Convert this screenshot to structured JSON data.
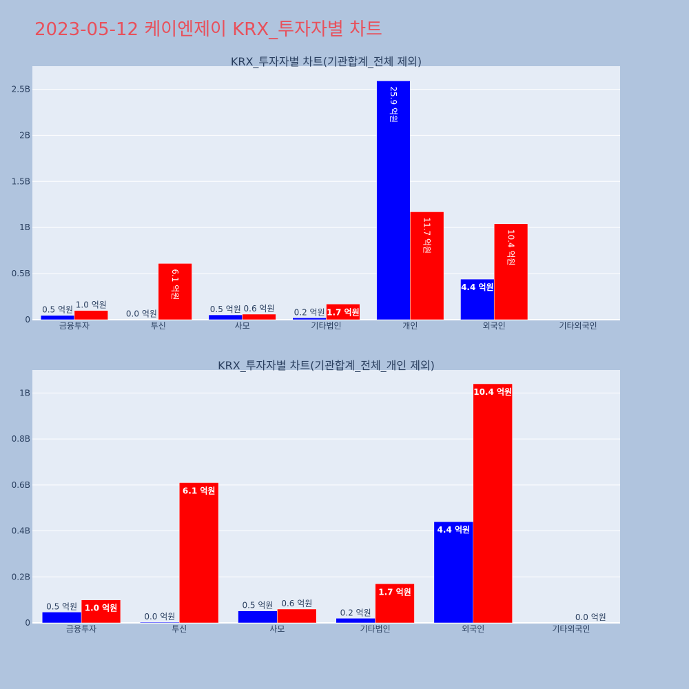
{
  "page": {
    "title": "2023-05-12 케이엔제이 KRX_투자자별 차트"
  },
  "colors": {
    "buy": "#0000ff",
    "sell": "#ff0000",
    "plot_bg": "#e5ecf6",
    "paper_bg": "#b0c4de",
    "title": "#e8505b"
  },
  "chart_data": [
    {
      "type": "bar",
      "title": "KRX_투자자별 차트(기관합계_전체 제외)",
      "categories": [
        "금융투자",
        "투신",
        "사모",
        "기타법인",
        "개인",
        "외국인",
        "기타외국인"
      ],
      "series": [
        {
          "values": [
            47000000,
            3000000,
            52000000,
            20000000,
            2590000000,
            440000000,
            0
          ],
          "labels": [
            "0.5 억원",
            "0.0 억원",
            "0.5 억원",
            "0.2 억원",
            "25.9 억원",
            "4.4 억원",
            ""
          ]
        },
        {
          "values": [
            100000000,
            610000000,
            60000000,
            170000000,
            1170000000,
            1040000000,
            0
          ],
          "labels": [
            "1.0 억원",
            "6.1 억원",
            "0.6 억원",
            "1.7 억원",
            "11.7 억원",
            "10.4 억원",
            ""
          ]
        }
      ],
      "ylim": [
        0,
        2750000000
      ],
      "yticks": [
        0,
        500000000,
        1000000000,
        1500000000,
        2000000000,
        2500000000
      ],
      "ytick_labels": [
        "0",
        "0.5B",
        "1B",
        "1.5B",
        "2B",
        "2.5B"
      ],
      "grid": true
    },
    {
      "type": "bar",
      "title": "KRX_투자자별 차트(기관합계_전체_개인 제외)",
      "categories": [
        "금융투자",
        "투신",
        "사모",
        "기타법인",
        "외국인",
        "기타외국인"
      ],
      "series": [
        {
          "values": [
            47000000,
            3000000,
            52000000,
            20000000,
            440000000,
            0
          ],
          "labels": [
            "0.5 억원",
            "0.0 억원",
            "0.5 억원",
            "0.2 억원",
            "4.4 억원",
            ""
          ]
        },
        {
          "values": [
            100000000,
            610000000,
            60000000,
            170000000,
            1040000000,
            0
          ],
          "labels": [
            "1.0 억원",
            "6.1 억원",
            "0.6 억원",
            "1.7 억원",
            "10.4 억원",
            "0.0 억원"
          ]
        }
      ],
      "ylim": [
        0,
        1100000000
      ],
      "yticks": [
        0,
        200000000,
        400000000,
        600000000,
        800000000,
        1000000000
      ],
      "ytick_labels": [
        "0",
        "0.2B",
        "0.4B",
        "0.6B",
        "0.8B",
        "1B"
      ],
      "grid": true
    }
  ]
}
